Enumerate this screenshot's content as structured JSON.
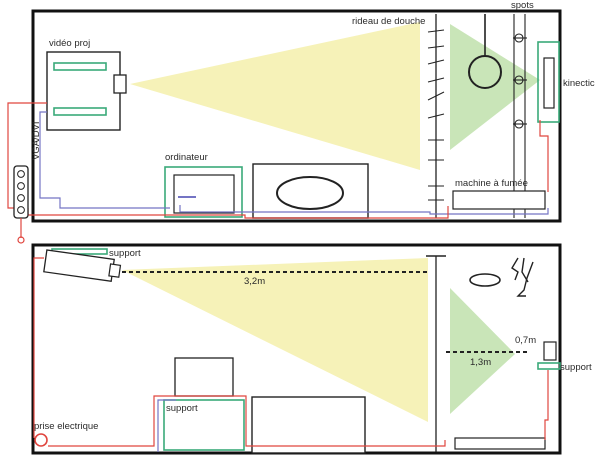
{
  "labels": {
    "rideau": "rideau de douche",
    "spots": "spots",
    "video_proj": "vidéo proj",
    "kinectic": "kinectic",
    "vga": "VGA/DVI",
    "ordinateur": "ordinateur",
    "machine": "machine à fumée",
    "support_top": "support",
    "dist_3_2": "3,2m",
    "dist_0_7": "0,7m",
    "dist_1_3": "1,3m",
    "support_right": "support",
    "support_bottom": "support",
    "prise": "prise electrique"
  },
  "colors": {
    "wall": "#111111",
    "projection": "#f6f2b8",
    "detection": "#c9e5b8",
    "cable_red": "#e0463f",
    "cable_blue": "#7474c4",
    "outline_green": "#3aaa7a"
  }
}
